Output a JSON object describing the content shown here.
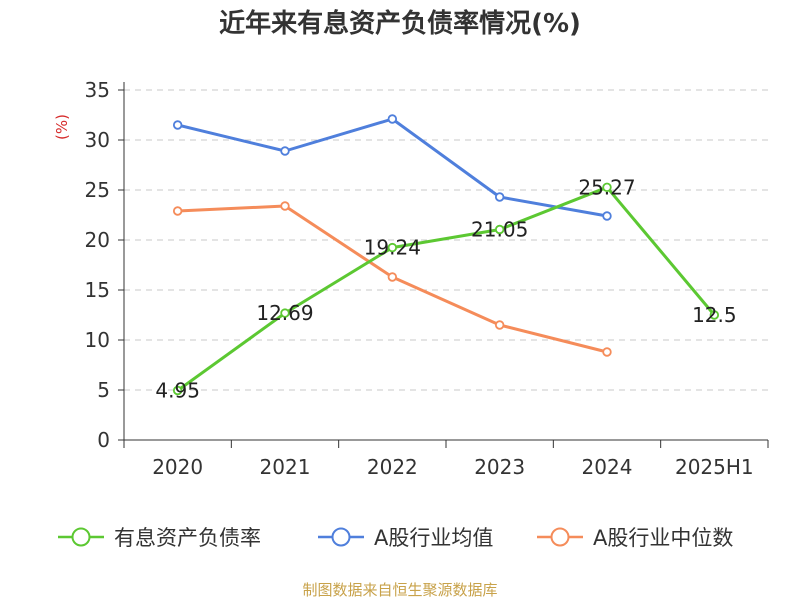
{
  "chart_data": {
    "type": "line",
    "title": "近年来有息资产负债率情况(%)",
    "ylabel": "(%)",
    "xlabel": "",
    "categories": [
      "2020",
      "2021",
      "2022",
      "2023",
      "2024",
      "2025H1"
    ],
    "ylim": [
      0,
      35
    ],
    "yticks": [
      0,
      5,
      10,
      15,
      20,
      25,
      30,
      35
    ],
    "grid": true,
    "series": [
      {
        "name": "有息资产负债率",
        "color": "#5cc832",
        "values": [
          4.95,
          12.69,
          19.24,
          21.05,
          25.27,
          12.5
        ],
        "labels": [
          "4.95",
          "12.69",
          "19.24",
          "21.05",
          "25.27",
          "12.5"
        ],
        "show_labels": true
      },
      {
        "name": "A股行业均值",
        "color": "#4f7fdc",
        "values": [
          31.5,
          28.9,
          32.1,
          24.3,
          22.4,
          null
        ],
        "show_labels": false
      },
      {
        "name": "A股行业中位数",
        "color": "#f58c5a",
        "values": [
          22.9,
          23.4,
          16.3,
          11.5,
          8.8,
          null
        ],
        "show_labels": false
      }
    ],
    "legend_position": "bottom"
  },
  "source": "制图数据来自恒生聚源数据库"
}
